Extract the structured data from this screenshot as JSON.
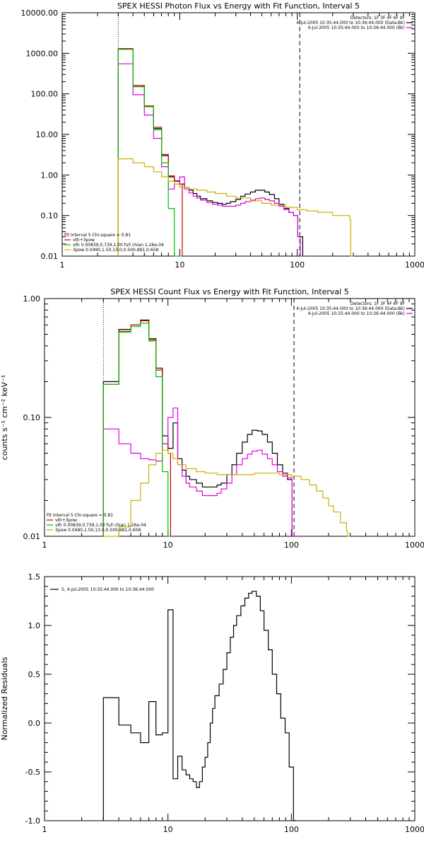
{
  "colors": {
    "black": "#000000",
    "red": "#cc0000",
    "magenta": "#e000e0",
    "green": "#00c000",
    "yellow": "#ccb000"
  },
  "chart_data": [
    {
      "type": "line",
      "title": "SPEX HESSI Photon Flux vs Energy with Fit Function, Interval 5",
      "xlabel": "",
      "ylabel": "",
      "xscale": "log",
      "yscale": "log",
      "xlim": [
        1,
        1000
      ],
      "ylim": [
        0.01,
        10000
      ],
      "xticks": [
        1,
        10,
        100,
        1000
      ],
      "xtick_labels": [
        "1",
        "10",
        "100",
        "1000"
      ],
      "yticks": [
        0.01,
        0.1,
        1,
        10,
        100,
        1000,
        10000
      ],
      "ytick_labels": [
        "0.01",
        "0.10",
        "1.00",
        "10.00",
        "100.00",
        "1000.00",
        "10000.00"
      ],
      "vlines": [
        {
          "x": 3.0,
          "style": "dotted"
        },
        {
          "x": 105,
          "style": "dashed"
        }
      ],
      "legend_topright": [
        {
          "text": "Detectors: 1F 3F 4F 6F 9F",
          "color": "black"
        },
        {
          "text": "4-Jul-2005 10:35:44.000 to 10:36:44.000 (Data-Bk)",
          "color": "black"
        },
        {
          "text": "4-Jul-2005 10:35:44.000 to 10:36:44.000 (Bk)",
          "color": "magenta"
        }
      ],
      "legend_bottomleft": [
        {
          "text": "Fit Interval 5   Chi-square = 0.81",
          "color": "black"
        },
        {
          "text": "vth+3pow",
          "color": "red"
        },
        {
          "text": "vth 0.00839,0.739,1.00  full chian 1.26e-04",
          "color": "green"
        },
        {
          "text": "3pow 0.0490,1.50,13.0,0.500,881,0.658",
          "color": "yellow"
        }
      ],
      "series": [
        {
          "key": "data_minus_bk",
          "color": "black",
          "x": [
            3,
            4,
            5,
            6,
            7,
            8,
            9,
            10,
            11,
            12,
            13,
            14,
            15,
            17,
            19,
            21,
            23,
            25,
            27,
            30,
            33,
            36,
            40,
            44,
            48,
            53,
            58,
            64,
            70,
            77,
            85,
            93,
            101,
            106
          ],
          "y": [
            1300,
            160,
            50,
            14,
            3,
            0.9,
            0.7,
            0.6,
            0.5,
            0.42,
            0.35,
            0.3,
            0.26,
            0.23,
            0.21,
            0.2,
            0.19,
            0.2,
            0.22,
            0.25,
            0.3,
            0.34,
            0.38,
            0.42,
            0.42,
            0.38,
            0.33,
            0.26,
            0.19,
            0.15,
            0.12,
            0.1,
            0.03,
            0.03
          ]
        },
        {
          "key": "fit_total",
          "color": "red",
          "x": [
            3,
            4,
            5,
            6,
            7,
            8,
            9,
            10
          ],
          "y": [
            1300,
            160,
            50,
            15,
            3.2,
            0.95,
            0.72,
            0.6
          ]
        },
        {
          "key": "background",
          "color": "magenta",
          "x": [
            3,
            4,
            5,
            6,
            7,
            8,
            9,
            10,
            11,
            12,
            13,
            14,
            15,
            17,
            19,
            21,
            23,
            25,
            27,
            30,
            33,
            36,
            40,
            44,
            48,
            53,
            58,
            64,
            70,
            77,
            85,
            93,
            101,
            106
          ],
          "y": [
            550,
            95,
            30,
            8,
            1.6,
            0.45,
            0.6,
            0.9,
            0.45,
            0.36,
            0.3,
            0.27,
            0.24,
            0.21,
            0.19,
            0.18,
            0.17,
            0.17,
            0.17,
            0.18,
            0.2,
            0.22,
            0.24,
            0.26,
            0.27,
            0.25,
            0.23,
            0.2,
            0.17,
            0.14,
            0.12,
            0.1,
            0.03,
            0.01
          ]
        },
        {
          "key": "vth",
          "color": "green",
          "x": [
            3,
            4,
            5,
            6,
            7,
            8,
            9,
            10
          ],
          "y": [
            1250,
            150,
            48,
            13,
            2,
            0.15,
            0.01,
            0.005
          ]
        },
        {
          "key": "3pow",
          "color": "yellow",
          "x": [
            3,
            4,
            5,
            6,
            7,
            8,
            9,
            10,
            12,
            14,
            17,
            20,
            25,
            30,
            40,
            50,
            60,
            80,
            100,
            120,
            150,
            200,
            280,
            285
          ],
          "y": [
            2.5,
            2,
            1.6,
            1.2,
            0.9,
            0.7,
            0.6,
            0.5,
            0.45,
            0.42,
            0.38,
            0.35,
            0.3,
            0.27,
            0.23,
            0.2,
            0.18,
            0.16,
            0.14,
            0.13,
            0.12,
            0.1,
            0.08,
            0.008
          ]
        }
      ]
    },
    {
      "type": "line",
      "title": "SPEX HESSI Count Flux vs Energy with Fit Function, Interval 5",
      "xlabel": "",
      "ylabel": "counts s⁻¹ cm⁻² keV⁻¹",
      "xscale": "log",
      "yscale": "log",
      "xlim": [
        1,
        1000
      ],
      "ylim": [
        0.01,
        1.0
      ],
      "xticks": [
        1,
        10,
        100,
        1000
      ],
      "xtick_labels": [
        "1",
        "10",
        "100",
        "1000"
      ],
      "yticks": [
        0.01,
        0.1,
        1.0
      ],
      "ytick_labels": [
        "0.01",
        "0.10",
        "1.00"
      ],
      "vlines": [
        {
          "x": 3.0,
          "style": "dotted"
        },
        {
          "x": 105,
          "style": "dashed"
        }
      ],
      "legend_topright": [
        {
          "text": "Detectors: 1F 3F 4F 6F 9F",
          "color": "black"
        },
        {
          "text": "4-Jul-2005 10:35:44.000 to 10:36:44.000 (Data-Bk)",
          "color": "black"
        },
        {
          "text": "4-Jul-2005 10:35:44.000 to 10:36:44.000 (Bk)",
          "color": "magenta"
        }
      ],
      "legend_bottomleft": [
        {
          "text": "Fit Interval 5   Chi-square = 0.81",
          "color": "black"
        },
        {
          "text": "vth+3pow",
          "color": "red"
        },
        {
          "text": "vth 0.00839,0.739,1.00  full chian 1.26e-04",
          "color": "green"
        },
        {
          "text": "3pow 0.0490,1.50,13.0,0.500,881,0.658",
          "color": "yellow"
        }
      ],
      "series": [
        {
          "key": "data_minus_bk",
          "color": "black",
          "x": [
            3,
            4,
            5,
            6,
            7,
            8,
            9,
            10,
            11,
            12,
            13,
            14,
            15,
            17,
            19,
            21,
            23,
            25,
            27,
            30,
            33,
            36,
            40,
            44,
            48,
            53,
            58,
            64,
            70,
            77,
            85,
            93,
            101,
            106
          ],
          "y": [
            0.2,
            0.55,
            0.6,
            0.66,
            0.46,
            0.26,
            0.07,
            0.055,
            0.09,
            0.045,
            0.036,
            0.032,
            0.03,
            0.028,
            0.026,
            0.026,
            0.026,
            0.027,
            0.028,
            0.033,
            0.04,
            0.05,
            0.062,
            0.072,
            0.078,
            0.077,
            0.072,
            0.062,
            0.05,
            0.04,
            0.034,
            0.03,
            0.01,
            0.01
          ]
        },
        {
          "key": "fit_total",
          "color": "red",
          "x": [
            3,
            4,
            5,
            6,
            7,
            8,
            9,
            10
          ],
          "y": [
            0.19,
            0.53,
            0.6,
            0.65,
            0.45,
            0.25,
            0.06,
            0.05
          ]
        },
        {
          "key": "background",
          "color": "magenta",
          "x": [
            3,
            4,
            5,
            6,
            7,
            8,
            9,
            10,
            11,
            12,
            13,
            14,
            15,
            17,
            19,
            21,
            23,
            25,
            27,
            30,
            33,
            36,
            40,
            44,
            48,
            53,
            58,
            64,
            70,
            77,
            85,
            93,
            101,
            106
          ],
          "y": [
            0.08,
            0.06,
            0.05,
            0.045,
            0.044,
            0.043,
            0.06,
            0.1,
            0.12,
            0.04,
            0.032,
            0.028,
            0.026,
            0.024,
            0.022,
            0.022,
            0.022,
            0.023,
            0.025,
            0.028,
            0.033,
            0.04,
            0.045,
            0.049,
            0.052,
            0.053,
            0.049,
            0.045,
            0.04,
            0.035,
            0.032,
            0.031,
            0.01,
            0.01
          ]
        },
        {
          "key": "vth",
          "color": "green",
          "x": [
            3,
            4,
            5,
            6,
            7,
            8,
            9,
            10
          ],
          "y": [
            0.19,
            0.52,
            0.58,
            0.62,
            0.44,
            0.22,
            0.035,
            0.009
          ]
        },
        {
          "key": "3pow",
          "color": "yellow",
          "x": [
            3,
            4,
            5,
            6,
            7,
            8,
            9,
            10,
            11,
            12,
            14,
            17,
            20,
            25,
            30,
            40,
            50,
            60,
            70,
            80,
            100,
            120,
            140,
            160,
            180,
            200,
            220,
            250,
            280,
            285
          ],
          "y": [
            0.008,
            0.012,
            0.02,
            0.028,
            0.04,
            0.05,
            0.053,
            0.05,
            0.045,
            0.04,
            0.037,
            0.035,
            0.034,
            0.033,
            0.033,
            0.033,
            0.034,
            0.034,
            0.034,
            0.033,
            0.032,
            0.03,
            0.027,
            0.024,
            0.021,
            0.018,
            0.016,
            0.013,
            0.011,
            0.008
          ]
        }
      ]
    },
    {
      "type": "line",
      "title": "",
      "xlabel": "",
      "ylabel": "Normalized Residuals",
      "xscale": "log",
      "yscale": "linear",
      "xlim": [
        1,
        1000
      ],
      "ylim": [
        -1.0,
        1.5
      ],
      "xticks": [
        1,
        10,
        100,
        1000
      ],
      "xtick_labels": [
        "1",
        "10",
        "100",
        "1000"
      ],
      "yticks": [
        -1.0,
        -0.5,
        0.0,
        0.5,
        1.0,
        1.5
      ],
      "ytick_labels": [
        "-1.0",
        "-0.5",
        "0.0",
        "0.5",
        "1.0",
        "1.5"
      ],
      "legend_topleft": [
        {
          "text": "5, 4-Jul-2005 10:35:44.000 to 10:36:44.000",
          "color": "black"
        }
      ],
      "series": [
        {
          "key": "residuals",
          "color": "black",
          "step": true,
          "x": [
            3,
            4,
            5,
            6,
            7,
            8,
            9,
            10,
            11,
            12,
            13,
            14,
            15,
            16,
            17,
            18,
            19,
            20,
            21,
            22,
            23,
            24,
            26,
            28,
            30,
            32,
            34,
            36,
            39,
            42,
            45,
            48,
            52,
            56,
            60,
            65,
            70,
            76,
            82,
            89,
            96,
            104
          ],
          "y": [
            0.26,
            -0.02,
            -0.1,
            -0.2,
            0.22,
            -0.12,
            -0.1,
            1.16,
            -0.57,
            -0.34,
            -0.48,
            -0.53,
            -0.57,
            -0.6,
            -0.66,
            -0.6,
            -0.45,
            -0.35,
            -0.2,
            0.0,
            0.15,
            0.28,
            0.4,
            0.55,
            0.72,
            0.88,
            1.0,
            1.1,
            1.2,
            1.28,
            1.33,
            1.35,
            1.3,
            1.15,
            0.95,
            0.75,
            0.5,
            0.3,
            0.05,
            -0.1,
            -0.45,
            -1.0
          ]
        }
      ]
    }
  ]
}
